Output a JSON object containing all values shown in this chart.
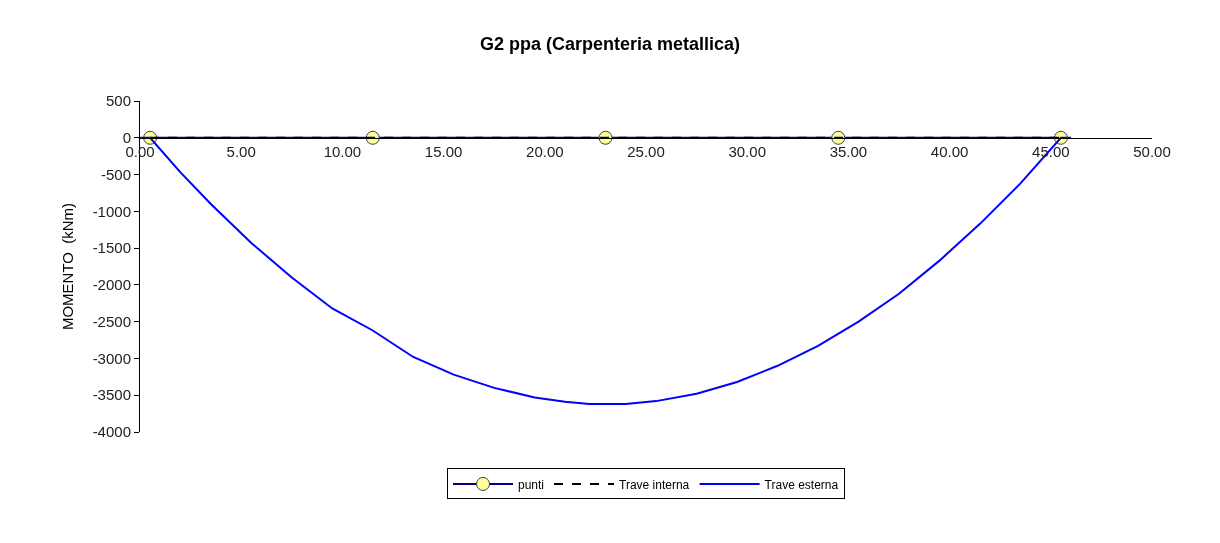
{
  "chart_data": {
    "type": "line",
    "title": "G2 ppa (Carpenteria metallica)",
    "ylabel": "MOMENTO  (kNm)",
    "xlim": [
      0,
      50
    ],
    "xticks": [
      {
        "value": 0,
        "label": "0.00"
      },
      {
        "value": 5,
        "label": "5.00"
      },
      {
        "value": 10,
        "label": "10.00"
      },
      {
        "value": 15,
        "label": "15.00"
      },
      {
        "value": 20,
        "label": "20.00"
      },
      {
        "value": 25,
        "label": "25.00"
      },
      {
        "value": 30,
        "label": "30.00"
      },
      {
        "value": 35,
        "label": "35.00"
      },
      {
        "value": 40,
        "label": "40.00"
      },
      {
        "value": 45,
        "label": "45.00"
      },
      {
        "value": 50,
        "label": "50.00"
      }
    ],
    "ylim": [
      -4000,
      500
    ],
    "yticks": [
      500,
      0,
      -500,
      -1000,
      -1500,
      -2000,
      -2500,
      -3000,
      -3500,
      -4000
    ],
    "legend": "bottom",
    "series": [
      {
        "name": "punti",
        "color": "#000080",
        "marker": "circle",
        "line_style": "solid",
        "x": [
          0.5,
          11.5,
          23,
          34.5,
          45.5
        ],
        "values": [
          0,
          0,
          0,
          0,
          0
        ]
      },
      {
        "name": "Trave interna",
        "color": "#000000",
        "marker": "none",
        "line_style": "dashed",
        "x": [
          0.5,
          45.5
        ],
        "values": [
          0,
          0
        ]
      },
      {
        "name": "Trave esterna",
        "color": "#0000ff",
        "marker": "none",
        "line_style": "solid",
        "x": [
          0,
          0.5,
          2,
          3.5,
          5.5,
          7.5,
          9.5,
          11.5,
          13.5,
          15.5,
          17.5,
          19.5,
          21,
          22.2,
          24,
          25.5,
          27.5,
          29.5,
          31.5,
          33.5,
          35.5,
          37.5,
          39.5,
          41.5,
          43.5,
          45.5,
          46
        ],
        "values": [
          0,
          0,
          -470,
          -900,
          -1430,
          -1900,
          -2320,
          -2620,
          -2980,
          -3220,
          -3400,
          -3530,
          -3590,
          -3620,
          -3620,
          -3580,
          -3480,
          -3320,
          -3100,
          -2830,
          -2500,
          -2120,
          -1670,
          -1170,
          -620,
          0,
          0
        ]
      }
    ]
  }
}
